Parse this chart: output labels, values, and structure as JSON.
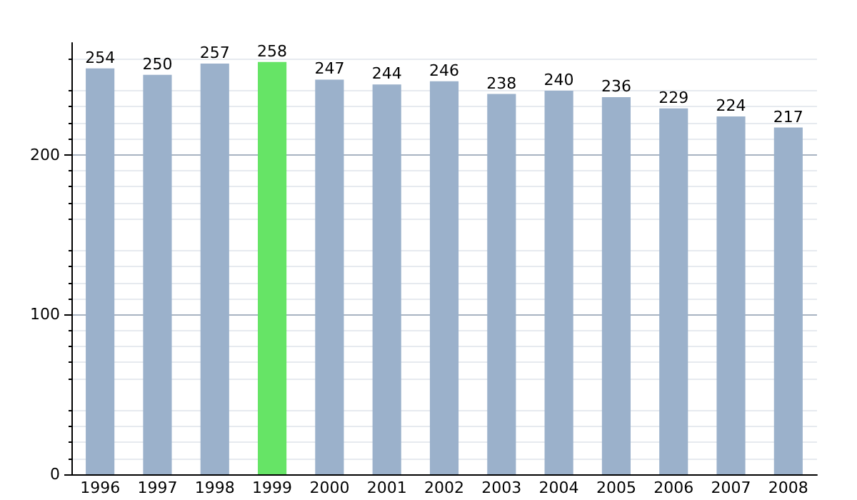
{
  "chart_data": {
    "type": "bar",
    "categories": [
      "1996",
      "1997",
      "1998",
      "1999",
      "2000",
      "2001",
      "2002",
      "2003",
      "2004",
      "2005",
      "2006",
      "2007",
      "2008"
    ],
    "values": [
      254,
      250,
      257,
      258,
      247,
      244,
      246,
      238,
      240,
      236,
      229,
      224,
      217
    ],
    "colors": [
      "#9bb1cb",
      "#9bb1cb",
      "#9bb1cb",
      "#66e466",
      "#9bb1cb",
      "#9bb1cb",
      "#9bb1cb",
      "#9bb1cb",
      "#9bb1cb",
      "#9bb1cb",
      "#9bb1cb",
      "#9bb1cb",
      "#9bb1cb"
    ],
    "ylim": [
      0,
      270
    ],
    "yticks": [
      0,
      100,
      200
    ],
    "grid": "y",
    "data_labels": true
  }
}
